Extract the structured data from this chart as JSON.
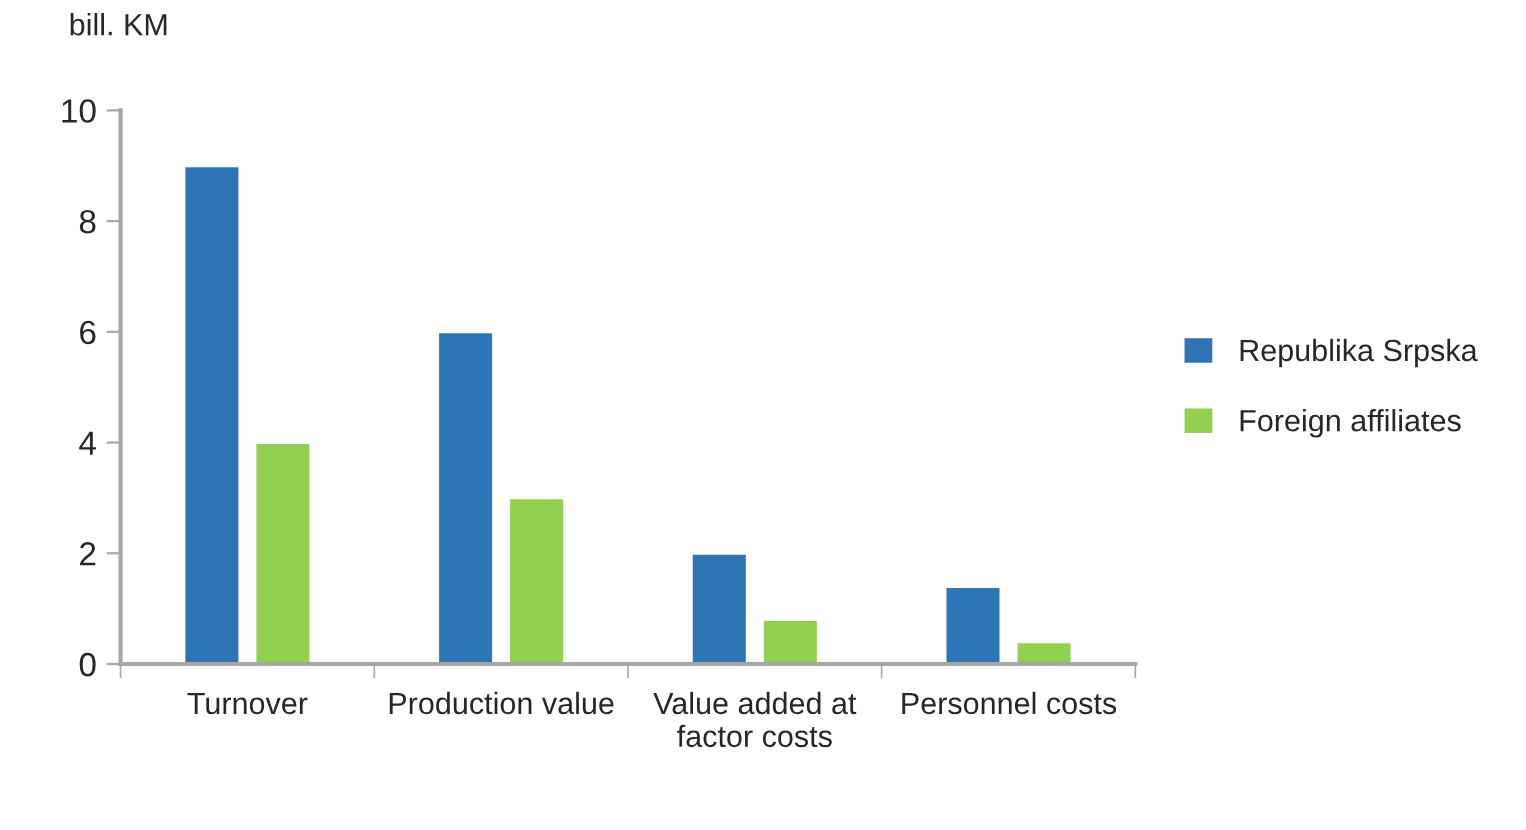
{
  "chart_data": {
    "type": "bar",
    "ylabel": "bill. KM",
    "categories": [
      "Turnover",
      "Production value",
      "Value added at\nfactor costs",
      "Personnel costs"
    ],
    "series": [
      {
        "name": "Republika Srpska",
        "color": "#2e75b6",
        "values": [
          9,
          6,
          2,
          1.4
        ]
      },
      {
        "name": "Foreign affiliates",
        "color": "#92d050",
        "values": [
          4,
          3,
          0.8,
          0.4
        ]
      }
    ],
    "ylim": [
      0,
      10
    ],
    "yticks": [
      0,
      2,
      4,
      6,
      8,
      10
    ],
    "grid": false,
    "legend": "right"
  }
}
